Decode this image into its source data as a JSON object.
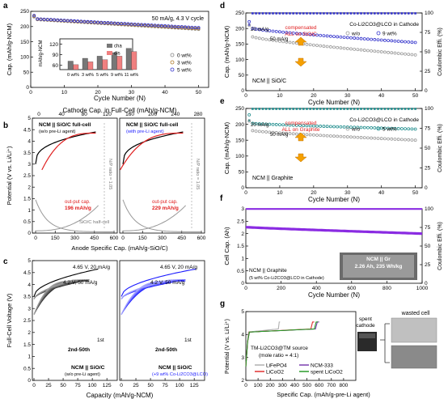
{
  "chart_data": [
    {
      "id": "a",
      "panel_letter": "a",
      "type": "scatter",
      "ylabel": "Cap. (mAh/g-NCM)",
      "xlabel": "Cycle Number (N)",
      "xlim": [
        0,
        53
      ],
      "ylim": [
        0,
        250
      ],
      "xticks": [
        0,
        10,
        20,
        30,
        40,
        50
      ],
      "yticks": [
        0,
        50,
        100,
        150,
        200,
        250
      ],
      "condition": "50 mA/g, 4.3 V cycle",
      "legend": [
        "0 wt%",
        "3 wt%",
        "5 wt%"
      ],
      "series": [
        {
          "name": "0 wt%",
          "color": "#888888",
          "start": 223,
          "end": 191,
          "first": 232
        },
        {
          "name": "3 wt%",
          "color": "#b07a2a",
          "start": 224,
          "end": 193,
          "first": 234
        },
        {
          "name": "5 wt%",
          "color": "#3333cc",
          "start": 225,
          "end": 196,
          "first": 236
        }
      ],
      "inset": {
        "type": "bar",
        "ylabel": "mAh/g-NCM",
        "yticks": [
          60,
          90,
          120
        ],
        "ylim": [
          48,
          135
        ],
        "legend": [
          "cha",
          "dis"
        ],
        "categories": [
          "0 wt%",
          "3 wt%",
          "5 wt%",
          "9 wt%",
          "11 wt%"
        ],
        "series": [
          {
            "name": "cha",
            "color": "#777777",
            "values": [
              72,
              80,
              86,
              96,
              108
            ]
          },
          {
            "name": "dis",
            "color": "#f08080",
            "values": [
              62,
              70,
              76,
              86,
              99
            ]
          }
        ]
      }
    },
    {
      "id": "b",
      "panel_letter": "b",
      "type": "line",
      "top_axis_label": "Cathode Cap. in Full-Cell (mAh/g-NCM)",
      "top_ticks": [
        0,
        40,
        80,
        120,
        160,
        200,
        240,
        280
      ],
      "xlabel": "Anode Specific Cap. (mAh/g-SiO/C)",
      "ylabel": "Potential (V vs. Li/Li⁺)",
      "ylim": [
        0,
        5
      ],
      "yticks": [
        0,
        0.5,
        1,
        1.5,
        2,
        2.5,
        3,
        3.5,
        4,
        4.5,
        5
      ],
      "bottom_ticks": [
        0,
        150,
        300,
        450,
        600
      ],
      "subplots": [
        {
          "title": "NCM || SiO/C full-cell",
          "subtitle": "(w/o pre-Li agent)",
          "output_label": "out-put cap.",
          "output_value": "196 mAh/g",
          "np_label": "N/P ratio = 1.05",
          "half_label": "SiO/C half-cell",
          "output_cap": 196
        },
        {
          "title": "NCM || SiO/C full-cell",
          "subtitle": "(with pre-Li agent)",
          "output_label": "out-put cap.",
          "output_value": "229 mAh/g",
          "np_label": "N/P ratio = 1.05",
          "half_label": "",
          "output_cap": 229
        }
      ]
    },
    {
      "id": "c",
      "panel_letter": "c",
      "type": "line",
      "ylabel": "Full-Cell Voltage (V)",
      "xlabel": "Capacity (mAh/g-NCM)",
      "ylim": [
        0,
        5
      ],
      "yticks": [
        0,
        0.5,
        1,
        1.5,
        2,
        2.5,
        3,
        3.5,
        4,
        4.5,
        5
      ],
      "xticks": [
        0,
        25,
        50,
        75,
        100,
        125
      ],
      "subplots": [
        {
          "label_top": "4.65 V, 20 mA/g",
          "label_mid": "4.2 V, 50 mA/g",
          "first": "1st",
          "range": "2nd-50th",
          "title": "NCM || SiO/C",
          "subtitle": "(w/o pre-Li agent)",
          "color": "#000000"
        },
        {
          "label_top": "4.65 V, 20 mA/g",
          "label_mid": "4.2 V, 50 mA/g",
          "first": "1st",
          "range": "2nd-50th",
          "title": "NCM || SiO/C",
          "subtitle": "(+9 wt% Co-Li2CO3@LCO)",
          "color": "#1a1aff"
        }
      ]
    },
    {
      "id": "d",
      "panel_letter": "d",
      "type": "scatter",
      "ylabel": "Cap. (mAh/g-NCM)",
      "y2label": "Coulombic Effi. (%)",
      "xlabel": "Cycle Number (N)",
      "xlim": [
        0,
        52
      ],
      "ylim": [
        0,
        250
      ],
      "yticks": [
        0,
        50,
        100,
        150,
        200,
        250
      ],
      "y2ticks": [
        0,
        25,
        50,
        75,
        100
      ],
      "xticks": [
        0,
        10,
        20,
        30,
        40,
        50
      ],
      "annot_rate1": "20 mA/g",
      "annot_rate2": "50 mA/g",
      "annot_comp": "compensated ALL on SiO/C",
      "material": "Co-Li2CO3@LCO in Cathode",
      "system": "NCM || SiO/C",
      "legend": [
        "w/o",
        "9 wt%"
      ],
      "series": [
        {
          "name": "w/o",
          "color": "#999999",
          "start": 173,
          "end": 115,
          "first": 210
        },
        {
          "name": "9 wt%",
          "color": "#3333cc",
          "start": 200,
          "end": 155,
          "first": 222
        }
      ],
      "ce": 99.5
    },
    {
      "id": "e",
      "panel_letter": "e",
      "type": "scatter",
      "ylabel": "Cap. (mAh/g-NCM)",
      "y2label": "Coulombic Effi. (%)",
      "xlabel": "Cycle Number (N)",
      "xlim": [
        0,
        52
      ],
      "ylim": [
        0,
        250
      ],
      "yticks": [
        0,
        50,
        100,
        150,
        200,
        250
      ],
      "y2ticks": [
        0,
        25,
        50,
        75,
        100
      ],
      "xticks": [
        0,
        10,
        20,
        30,
        40,
        50
      ],
      "annot_rate1": "20 mA/g",
      "annot_rate2": "50 mA/g",
      "annot_comp": "compensated ALL on Graphite",
      "material": "Co-Li2CO3@LCO in Cathode",
      "system": "NCM || Graphite",
      "legend": [
        "w/o",
        "5 wt%"
      ],
      "series": [
        {
          "name": "w/o",
          "color": "#999999",
          "start": 180,
          "end": 150,
          "first": 210
        },
        {
          "name": "5 wt%",
          "color": "#1a8a8a",
          "start": 203,
          "end": 185,
          "first": 230
        }
      ],
      "ce": 99.5
    },
    {
      "id": "f",
      "panel_letter": "f",
      "type": "scatter",
      "ylabel": "Cell Cap. (Ah)",
      "y2label": "Coulombic Effi. (%)",
      "xlabel": "Cycle Number (N)",
      "xlim": [
        0,
        1000
      ],
      "ylim": [
        0,
        3
      ],
      "yticks": [
        0,
        0.5,
        1,
        1.5,
        2,
        2.5,
        3
      ],
      "y2ticks": [
        0,
        25,
        50,
        75,
        100
      ],
      "xticks": [
        0,
        200,
        400,
        600,
        800,
        1000
      ],
      "system": "NCM || Graphite",
      "material": "(5 wt% Co-Li2CO3@LCO in Cathode)",
      "photo_title": "NCM || Gr",
      "photo_spec": "2.26 Ah, 235 Wh/kg",
      "start": 2.26,
      "end": 2.0,
      "ce": 99.8
    },
    {
      "id": "g",
      "panel_letter": "g",
      "type": "line",
      "ylabel": "Potential (V vs. Li/Li⁺)",
      "xlabel": "Specific Cap. (mAh/g-pre-Li agent)",
      "xlim": [
        0,
        900
      ],
      "ylim": [
        2,
        5
      ],
      "xticks": [
        0,
        100,
        200,
        300,
        400,
        500,
        600,
        700,
        800
      ],
      "yticks": [
        2,
        3,
        4,
        5
      ],
      "note_title": "TM-Li2CO3@TM source",
      "note_ratio": "(mole ratio = 4:1)",
      "photo_spent": "spent cathode",
      "photo_wasted": "wasted cell",
      "series": [
        {
          "name": "LiFePO4",
          "color": "#b0b0b0",
          "end_cap": 280
        },
        {
          "name": "NCM-333",
          "color": "#7a3fb0",
          "end_cap": 600
        },
        {
          "name": "LiCoO2",
          "color": "#e03030",
          "end_cap": 560
        },
        {
          "name": "spent LiCoO2",
          "color": "#2a9a2a",
          "end_cap": 590
        }
      ]
    }
  ]
}
